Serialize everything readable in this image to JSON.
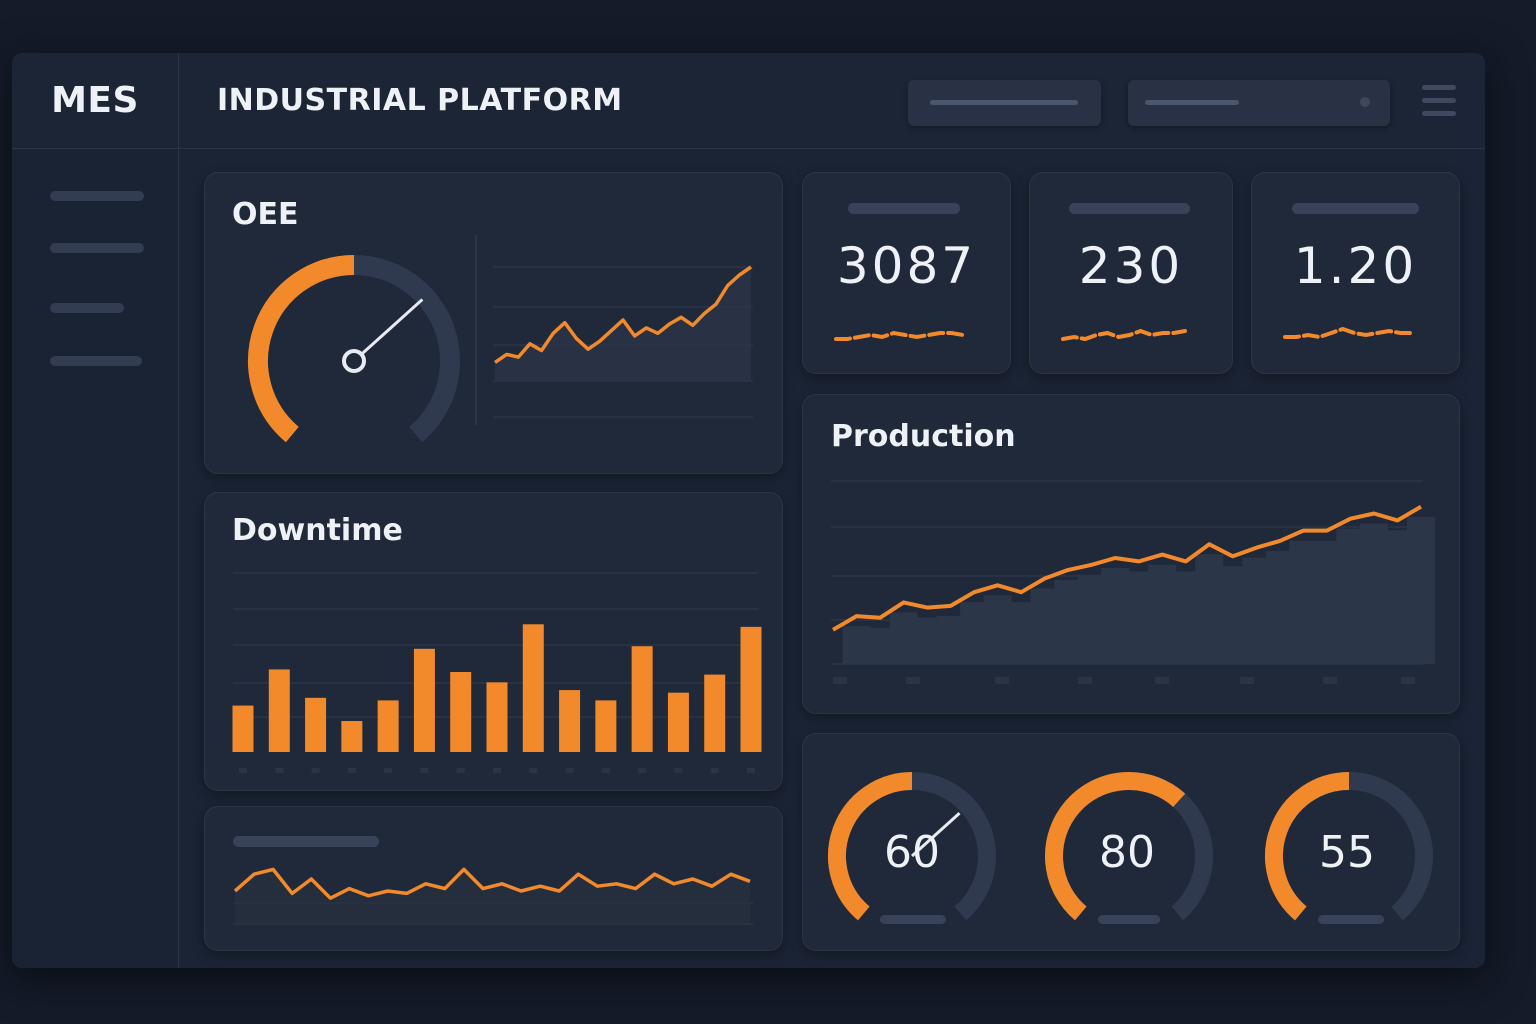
{
  "header": {
    "brand": "MES",
    "title": "INDUSTRIAL PLATFORM"
  },
  "colors": {
    "accent": "#f28a2c",
    "background": "#141b29",
    "panel": "#1f2939",
    "track": "#2f3a4e"
  },
  "icons": {
    "menu": "hamburger-menu-icon"
  },
  "oee": {
    "title": "OEE",
    "gauge_fraction": 0.5,
    "trend": [
      8,
      14,
      12,
      22,
      17,
      30,
      38,
      26,
      18,
      24,
      32,
      40,
      28,
      34,
      30,
      37,
      42,
      36,
      45,
      52,
      66,
      74,
      80
    ]
  },
  "kpis": [
    {
      "value": "3087",
      "spark": [
        3,
        3,
        4,
        5,
        4,
        6,
        5,
        4,
        5,
        6,
        6,
        5
      ]
    },
    {
      "value": "230",
      "spark": [
        3,
        4,
        3,
        5,
        6,
        4,
        5,
        7,
        5,
        6,
        6,
        7
      ]
    },
    {
      "value": "1.20",
      "spark": [
        4,
        4,
        5,
        4,
        6,
        8,
        6,
        5,
        6,
        7,
        6,
        6
      ]
    }
  ],
  "production": {
    "title": "Production",
    "chart_data": {
      "type": "line",
      "title": "Production",
      "values": [
        20,
        28,
        27,
        36,
        33,
        34,
        42,
        46,
        42,
        50,
        55,
        58,
        62,
        60,
        64,
        60,
        70,
        63,
        68,
        72,
        78,
        78,
        85,
        88,
        84,
        92
      ]
    }
  },
  "downtime": {
    "title": "Downtime",
    "chart_data": {
      "type": "bar",
      "title": "Downtime",
      "values": [
        36,
        64,
        42,
        24,
        40,
        80,
        62,
        54,
        99,
        48,
        40,
        82,
        46,
        60,
        97
      ]
    }
  },
  "bottom_trend": {
    "values": [
      5,
      12,
      14,
      4,
      10,
      2,
      6,
      3,
      5,
      4,
      8,
      6,
      14,
      6,
      8,
      5,
      7,
      5,
      12,
      7,
      8,
      6,
      12,
      8,
      10,
      7,
      12,
      9
    ]
  },
  "gauges": [
    {
      "value": "60",
      "fraction": 0.5
    },
    {
      "value": "80",
      "fraction": 0.65
    },
    {
      "value": "55",
      "fraction": 0.5
    }
  ]
}
